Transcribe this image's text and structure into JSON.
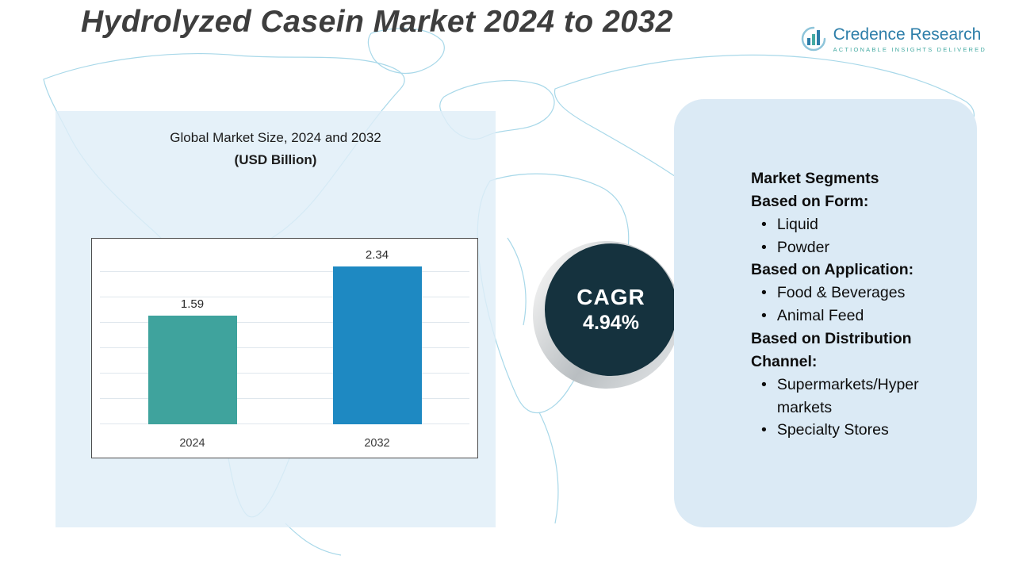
{
  "header": {
    "title": "Hydrolyzed Casein Market 2024 to 2032",
    "logo": {
      "name": "Credence Research",
      "tagline": "Actionable Insights Delivered"
    }
  },
  "chart_data": {
    "type": "bar",
    "title": "Global Market Size, 2024 and 2032",
    "subtitle": "(USD Billion)",
    "categories": [
      "2024",
      "2032"
    ],
    "values": [
      1.59,
      2.34
    ],
    "ylabel": "",
    "xlabel": "",
    "ylim": [
      0,
      2.6
    ],
    "grid": true,
    "legend": "none",
    "bar_colors": [
      "#3fa39d",
      "#1e89c2"
    ]
  },
  "cagr": {
    "label": "CAGR",
    "value": "4.94%"
  },
  "segments": {
    "heading": "Market Segments",
    "groups": [
      {
        "label": "Based on Form:",
        "items": [
          "Liquid",
          "Powder"
        ]
      },
      {
        "label": "Based on Application:",
        "items": [
          "Food & Beverages",
          "Animal Feed"
        ]
      },
      {
        "label": "Based on Distribution Channel:",
        "items": [
          "Supermarkets/Hyper markets",
          "Specialty Stores"
        ]
      }
    ]
  },
  "colors": {
    "panel_background": "#dbeaf5",
    "left_panel_background": "#dfeef8",
    "cagr_circle": "#15323e",
    "map_outline": "#a8d8e9",
    "logo_blue": "#2d7ea9",
    "logo_teal": "#44aaa2",
    "title_text": "#3e3e3e"
  }
}
